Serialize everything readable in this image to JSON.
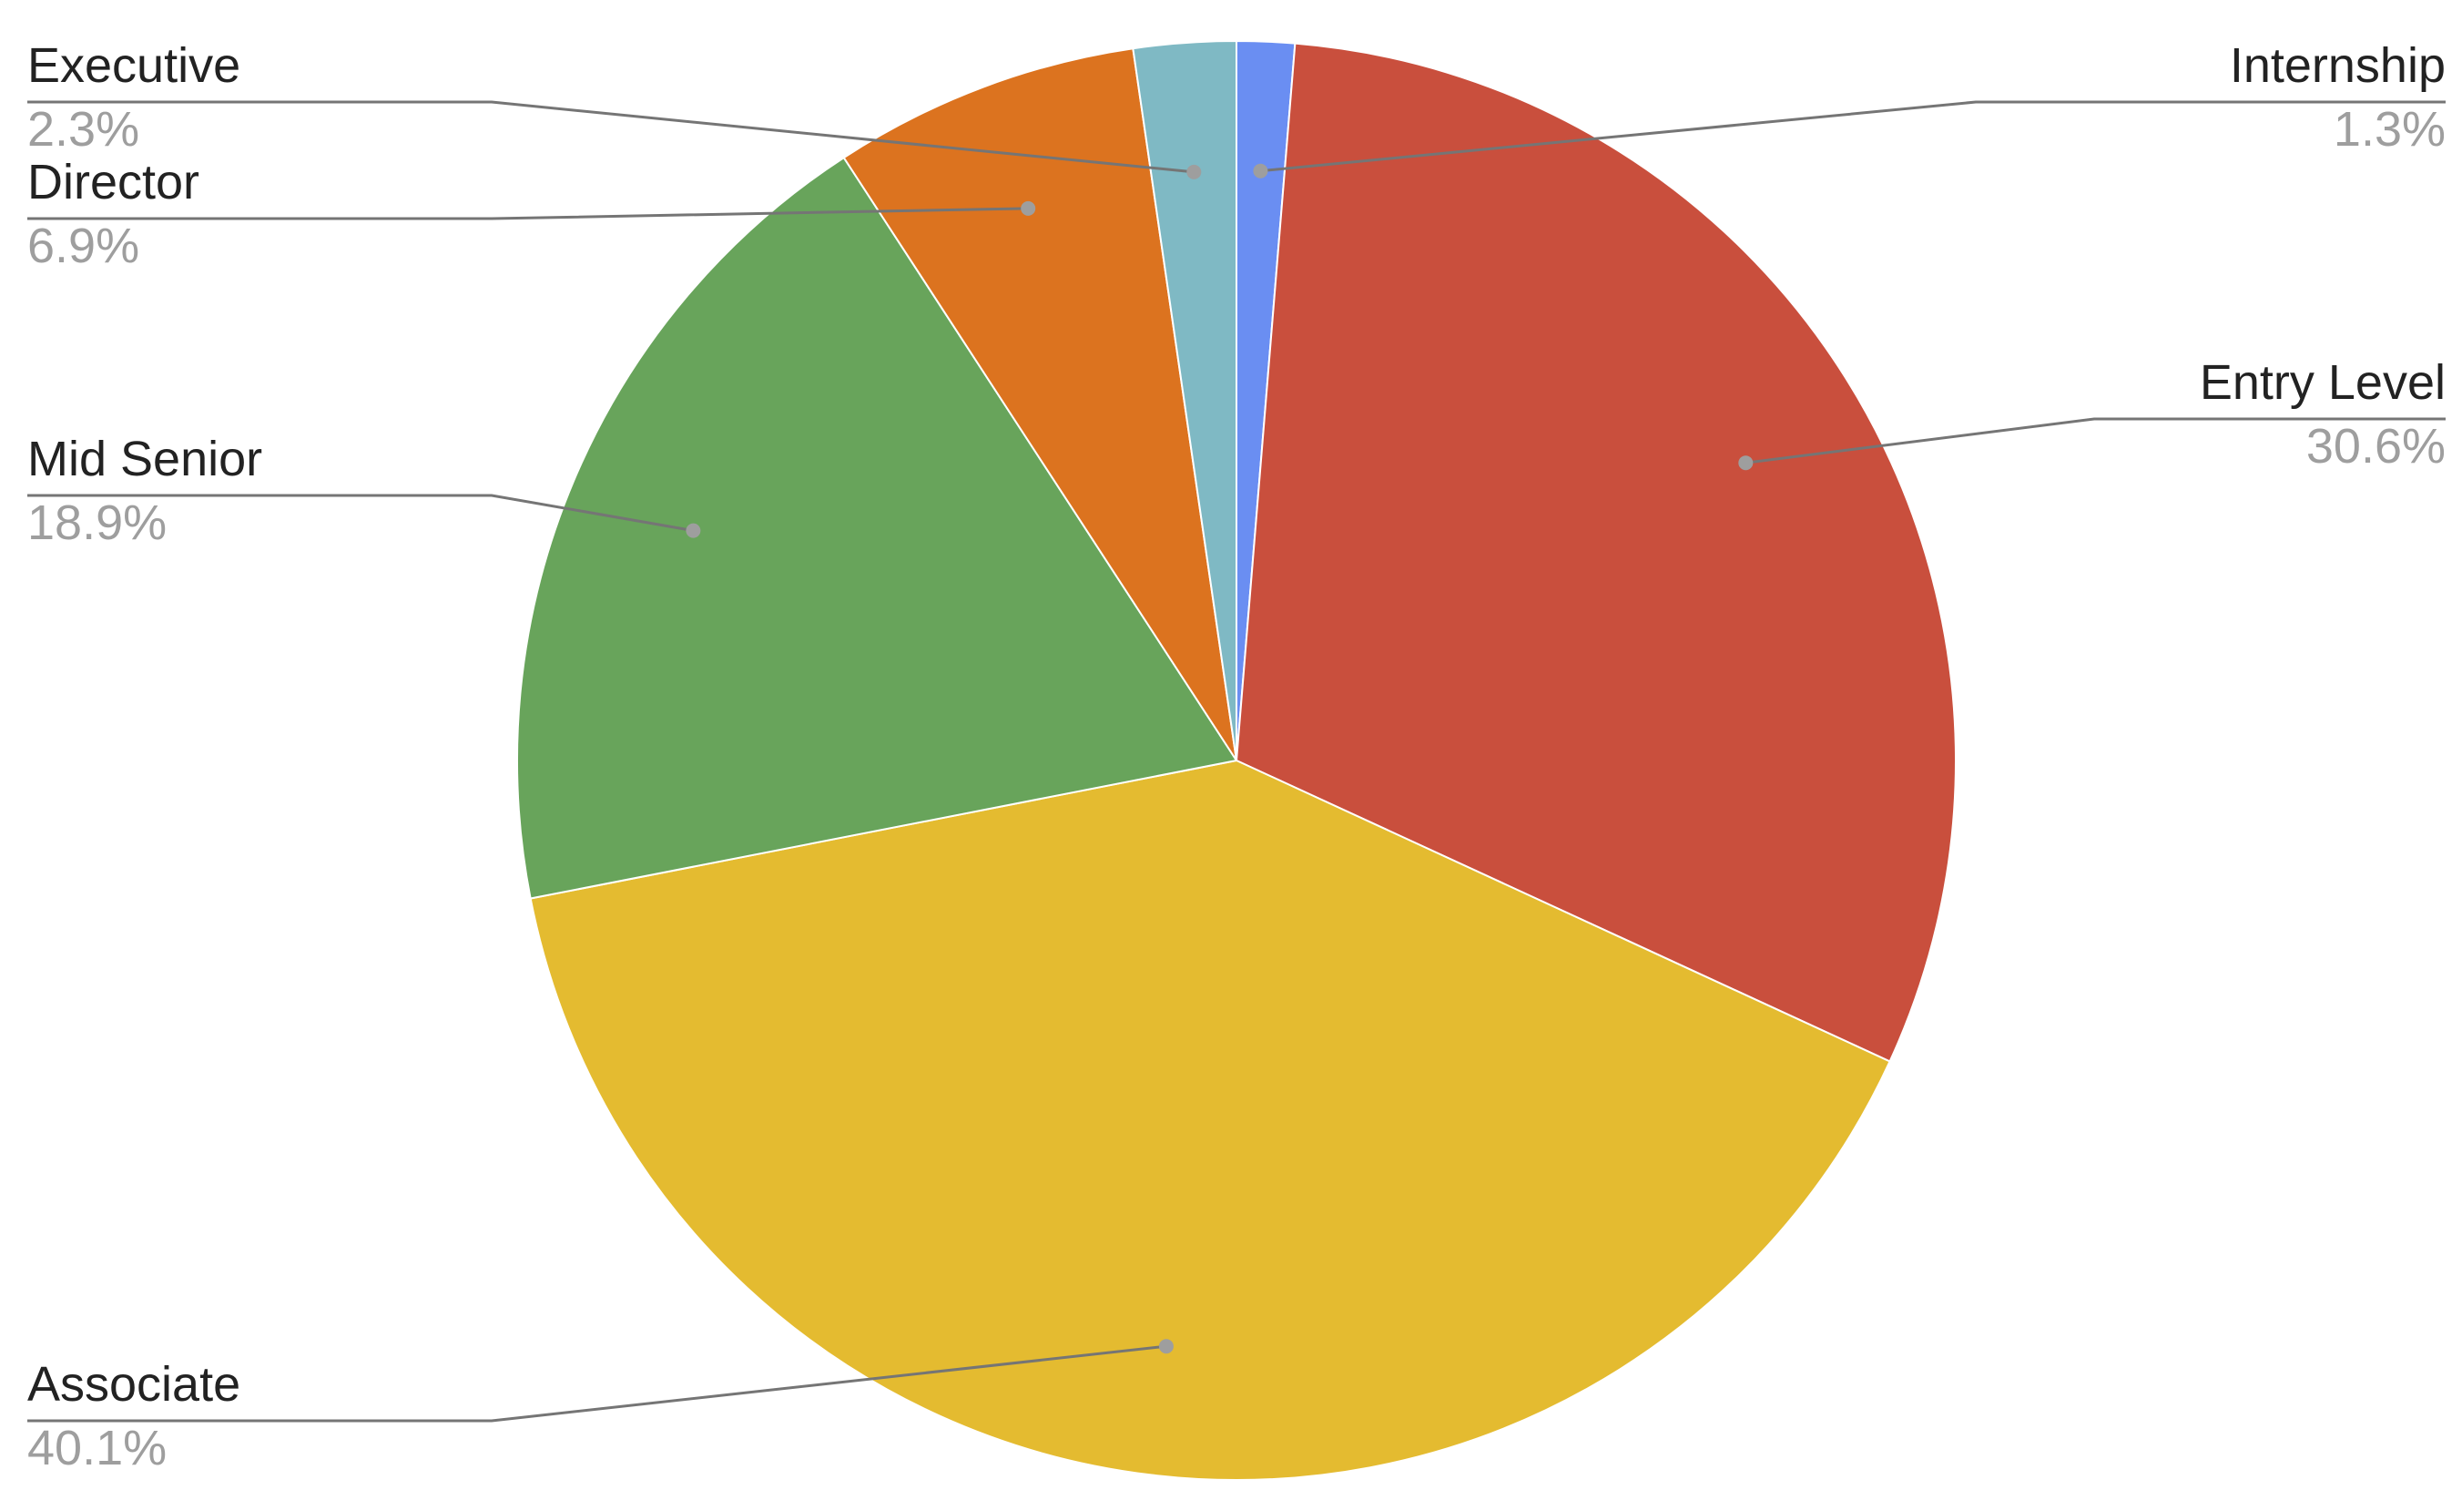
{
  "chart_data": {
    "type": "pie",
    "title": "",
    "start_angle_deg": 0,
    "direction": "clockwise",
    "slices": [
      {
        "label": "Internship",
        "value": 1.3,
        "value_label": "1.3%",
        "color": "#6a8ef2",
        "label_side": "right"
      },
      {
        "label": "Entry Level",
        "value": 30.6,
        "value_label": "30.6%",
        "color": "#c94f3d",
        "label_side": "right"
      },
      {
        "label": "Associate",
        "value": 40.1,
        "value_label": "40.1%",
        "color": "#e4bb30",
        "label_side": "left"
      },
      {
        "label": "Mid Senior",
        "value": 18.9,
        "value_label": "18.9%",
        "color": "#68a45b",
        "label_side": "left"
      },
      {
        "label": "Director",
        "value": 6.9,
        "value_label": "6.9%",
        "color": "#dc731f",
        "label_side": "left"
      },
      {
        "label": "Executive",
        "value": 2.3,
        "value_label": "2.3%",
        "color": "#7fb9c4",
        "label_side": "left"
      }
    ]
  }
}
